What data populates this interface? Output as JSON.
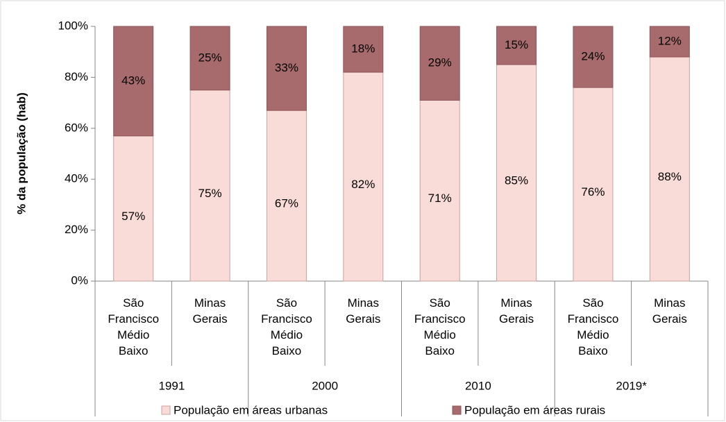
{
  "chart_data": {
    "type": "stacked_bar",
    "ylabel": "% da população (hab)",
    "categories": [
      "São Francisco Médio Baixo",
      "Minas Gerais",
      "São Francisco Médio Baixo",
      "Minas Gerais",
      "São Francisco Médio Baixo",
      "Minas Gerais",
      "São Francisco Médio Baixo",
      "Minas Gerais"
    ],
    "groups": [
      "1991",
      "2000",
      "2010",
      "2019*"
    ],
    "series": [
      {
        "name": "População em áreas urbanas",
        "color": "#f9dcd8",
        "values": [
          57,
          75,
          67,
          82,
          71,
          85,
          76,
          88
        ],
        "value_labels": [
          "57%",
          "75%",
          "67%",
          "82%",
          "71%",
          "85%",
          "76%",
          "88%"
        ]
      },
      {
        "name": "População em áreas rurais",
        "color": "#a86b6d",
        "values": [
          43,
          25,
          33,
          18,
          29,
          15,
          24,
          12
        ],
        "value_labels": [
          "43%",
          "25%",
          "33%",
          "18%",
          "29%",
          "15%",
          "24%",
          "12%"
        ]
      }
    ],
    "ylim": [
      0,
      100
    ],
    "yticks": [
      {
        "value": 0,
        "label": "0%"
      },
      {
        "value": 20,
        "label": "20%"
      },
      {
        "value": 40,
        "label": "40%"
      },
      {
        "value": 60,
        "label": "60%"
      },
      {
        "value": 80,
        "label": "80%"
      },
      {
        "value": 100,
        "label": "100%"
      }
    ]
  }
}
